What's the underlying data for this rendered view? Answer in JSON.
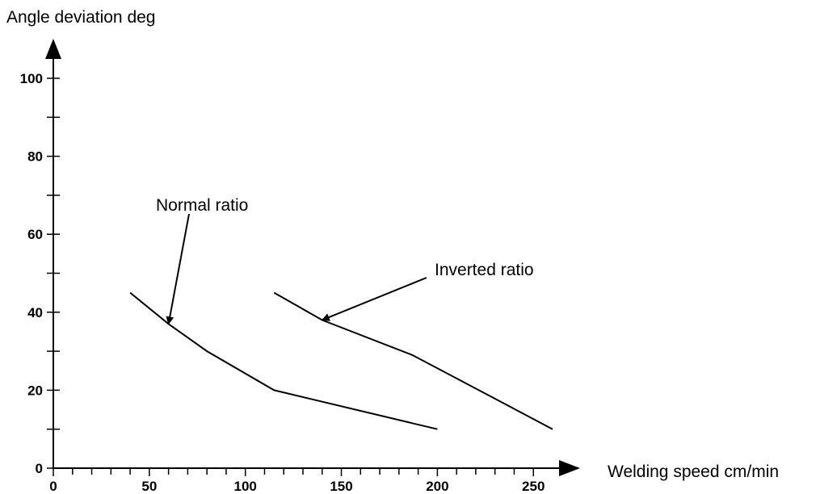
{
  "chart_data": {
    "type": "line",
    "xlabel": "Welding speed cm/min",
    "ylabel": "Angle deviation deg",
    "xlim": [
      0,
      260
    ],
    "ylim": [
      0,
      100
    ],
    "x_ticks": [
      0,
      50,
      100,
      150,
      200,
      250
    ],
    "y_ticks": [
      0,
      20,
      40,
      60,
      80,
      100
    ],
    "x_minor_step": 10,
    "y_minor_step": 10,
    "grid": false,
    "series": [
      {
        "name": "Normal ratio",
        "x": [
          40,
          60,
          80,
          115,
          200
        ],
        "y": [
          45,
          37,
          30,
          20,
          10
        ]
      },
      {
        "name": "Inverted ratio",
        "x": [
          115,
          140,
          187,
          260
        ],
        "y": [
          45,
          38,
          29,
          10
        ]
      }
    ],
    "annotations": [
      {
        "text": "Normal ratio",
        "series": 0,
        "point_x": 60,
        "point_y": 37
      },
      {
        "text": "Inverted ratio",
        "series": 1,
        "point_x": 140,
        "point_y": 38
      }
    ]
  }
}
